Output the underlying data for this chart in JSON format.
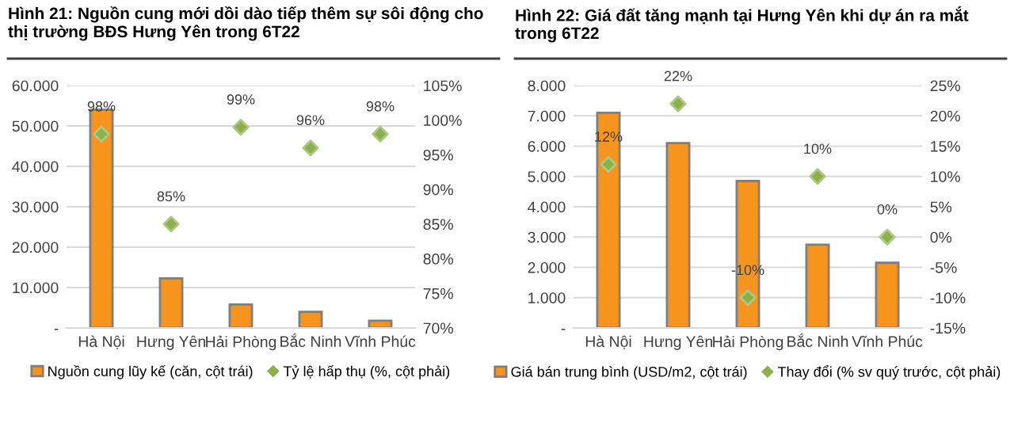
{
  "chart_data": [
    {
      "type": "bar",
      "title": "Hình 21: Nguồn cung mới dồi dào tiếp thêm sự sôi động cho thị trường BĐS Hưng Yên trong 6T22",
      "categories": [
        "Hà Nội",
        "Hưng Yên",
        "Hải Phòng",
        "Bắc Ninh",
        "Vĩnh Phúc"
      ],
      "series": [
        {
          "name": "Nguồn cung lũy kế (căn, cột trái)",
          "color": "#f7941d",
          "values": [
            54000,
            12300,
            5800,
            4000,
            1800
          ]
        },
        {
          "name": "Tỷ lệ hấp thụ (%, cột phải)",
          "type": "scatter",
          "axis": "y2",
          "color": "#8cb04a",
          "values": [
            98,
            85,
            99,
            96,
            98
          ],
          "value_labels": [
            "98%",
            "85%",
            "99%",
            "96%",
            "98%"
          ]
        }
      ],
      "ylim": [
        0,
        60000
      ],
      "yticks": [
        {
          "value": 0,
          "label": "-"
        },
        {
          "value": 10000,
          "label": "10.000"
        },
        {
          "value": 20000,
          "label": "20.000"
        },
        {
          "value": 30000,
          "label": "30.000"
        },
        {
          "value": 40000,
          "label": "40.000"
        },
        {
          "value": 50000,
          "label": "50.000"
        },
        {
          "value": 60000,
          "label": "60.000"
        }
      ],
      "y2lim": [
        70,
        105
      ],
      "y2ticks": [
        {
          "value": 70,
          "label": "70%"
        },
        {
          "value": 75,
          "label": "75%"
        },
        {
          "value": 80,
          "label": "80%"
        },
        {
          "value": 85,
          "label": "85%"
        },
        {
          "value": 90,
          "label": "90%"
        },
        {
          "value": 95,
          "label": "95%"
        },
        {
          "value": 100,
          "label": "100%"
        },
        {
          "value": 105,
          "label": "105%"
        }
      ],
      "grid": "y",
      "legend": "bottom",
      "marker": "diamond"
    },
    {
      "type": "bar",
      "title": "Hình 22: Giá đất tăng mạnh tại Hưng Yên khi dự án ra mắt trong 6T22",
      "categories": [
        "Hà Nội",
        "Hưng Yên",
        "Hải Phòng",
        "Bắc Ninh",
        "Vĩnh Phúc"
      ],
      "series": [
        {
          "name": "Giá bán trung bình (USD/m2, cột trái)",
          "color": "#f7941d",
          "values": [
            7100,
            6100,
            4850,
            2750,
            2150
          ]
        },
        {
          "name": "Thay đổi (% sv quý trước, cột phải)",
          "type": "scatter",
          "axis": "y2",
          "color": "#8cb04a",
          "values": [
            12,
            22,
            -10,
            10,
            0
          ],
          "value_labels": [
            "12%",
            "22%",
            "-10%",
            "10%",
            "0%"
          ]
        }
      ],
      "ylim": [
        0,
        8000
      ],
      "yticks": [
        {
          "value": 0,
          "label": "-"
        },
        {
          "value": 1000,
          "label": "1.000"
        },
        {
          "value": 2000,
          "label": "2.000"
        },
        {
          "value": 3000,
          "label": "3.000"
        },
        {
          "value": 4000,
          "label": "4.000"
        },
        {
          "value": 5000,
          "label": "5.000"
        },
        {
          "value": 6000,
          "label": "6.000"
        },
        {
          "value": 7000,
          "label": "7.000"
        },
        {
          "value": 8000,
          "label": "8.000"
        }
      ],
      "y2lim": [
        -15,
        25
      ],
      "y2ticks": [
        {
          "value": -15,
          "label": "-15%"
        },
        {
          "value": -10,
          "label": "-10%"
        },
        {
          "value": -5,
          "label": "-5%"
        },
        {
          "value": 0,
          "label": "0%"
        },
        {
          "value": 5,
          "label": "5%"
        },
        {
          "value": 10,
          "label": "10%"
        },
        {
          "value": 15,
          "label": "15%"
        },
        {
          "value": 20,
          "label": "20%"
        },
        {
          "value": 25,
          "label": "25%"
        }
      ],
      "grid": "y",
      "legend": "bottom",
      "marker": "diamond"
    }
  ]
}
